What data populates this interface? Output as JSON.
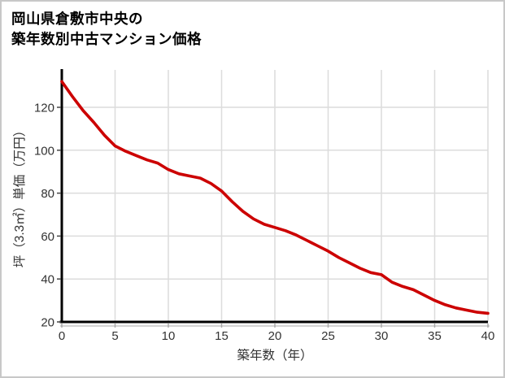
{
  "window": {
    "background_color": "#ffffff",
    "border_color": "#c8c8c8"
  },
  "title": {
    "line1": "岡山県倉敷市中央の",
    "line2": "築年数別中古マンション価格"
  },
  "chart_data": {
    "type": "line",
    "title": "岡山県倉敷市中央の築年数別中古マンション価格",
    "xlabel": "築年数（年）",
    "ylabel": "坪（3.3㎡）単価（万円）",
    "x": [
      0,
      1,
      2,
      3,
      4,
      5,
      6,
      7,
      8,
      9,
      10,
      11,
      12,
      13,
      14,
      15,
      16,
      17,
      18,
      19,
      20,
      21,
      22,
      23,
      24,
      25,
      26,
      27,
      28,
      29,
      30,
      31,
      32,
      33,
      34,
      35,
      36,
      37,
      38,
      39,
      40
    ],
    "values": [
      132,
      125,
      118.5,
      113,
      107,
      102,
      99.5,
      97.5,
      95.5,
      94,
      91,
      89,
      88,
      87,
      84.5,
      81,
      76,
      71.5,
      68,
      65.5,
      64,
      62.5,
      60.5,
      58,
      55.5,
      53,
      50,
      47.5,
      45,
      43,
      42,
      38.5,
      36.5,
      35,
      32.5,
      30,
      28,
      26.5,
      25.5,
      24.5,
      24
    ],
    "x_ticks": [
      0,
      5,
      10,
      15,
      20,
      25,
      30,
      35,
      40
    ],
    "y_ticks": [
      20,
      40,
      60,
      80,
      100,
      120
    ],
    "xlim": [
      0,
      40
    ],
    "ylim": [
      20,
      137
    ],
    "grid": true,
    "legend": "none",
    "line_color": "#cc0000",
    "grid_color": "#dcdcdc",
    "axis_color": "#000000",
    "axis_underline_color": "#d4d4d4",
    "tick_label_color": "#333333",
    "axis_title_color": "#333333"
  }
}
